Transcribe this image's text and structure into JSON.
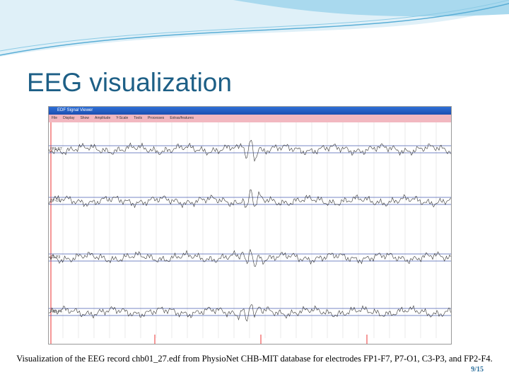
{
  "slide": {
    "title": "EEG visualization",
    "caption": "Visualization of the EEG record chb01_27.edf from PhysioNet CHB-MIT database for electrodes FP1-F7, P7-O1, C3-P3, and FP2-F4.",
    "page": "9/15"
  },
  "window": {
    "title": "EDF Signal Viewer",
    "menu": [
      "File",
      "Display",
      "Show",
      "Amplitude",
      "Y-Scale",
      "Tools",
      "Processes",
      "Extras/features"
    ],
    "channels": [
      "FP1-F7",
      "P7-O1",
      "C3-P3",
      "FP2-F4"
    ]
  }
}
